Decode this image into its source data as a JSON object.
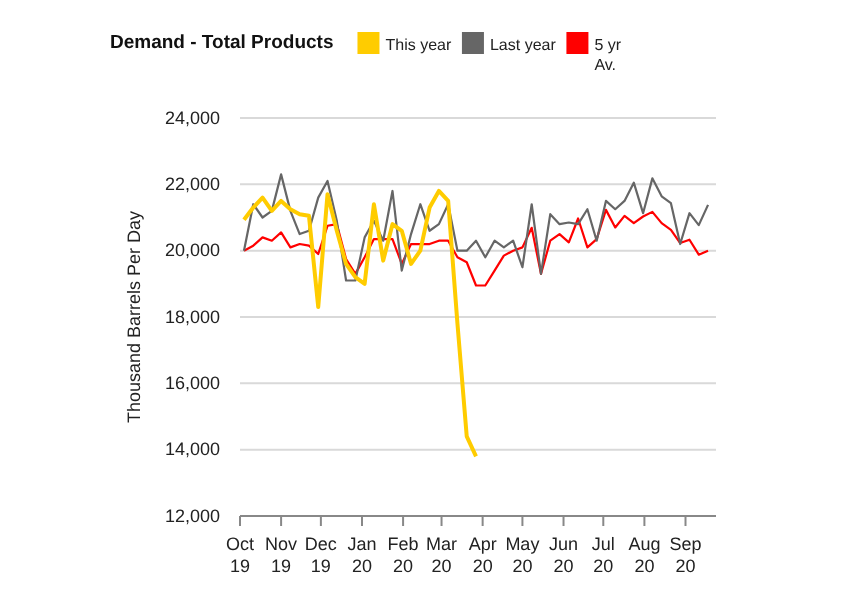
{
  "chart_data": {
    "type": "line",
    "title": "Demand - Total Products",
    "ylabel": "Thousand Barrels Per Day",
    "legend": "top",
    "grid": "y",
    "x": [
      "2019-10-04",
      "2019-10-11",
      "2019-10-18",
      "2019-10-25",
      "2019-11-01",
      "2019-11-08",
      "2019-11-15",
      "2019-11-22",
      "2019-11-29",
      "2019-12-06",
      "2019-12-13",
      "2019-12-20",
      "2019-12-27",
      "2020-01-03",
      "2020-01-10",
      "2020-01-17",
      "2020-01-24",
      "2020-01-31",
      "2020-02-07",
      "2020-02-14",
      "2020-02-21",
      "2020-02-28",
      "2020-03-06",
      "2020-03-13",
      "2020-03-20",
      "2020-03-27",
      "2020-04-03",
      "2020-04-10",
      "2020-04-17",
      "2020-04-24",
      "2020-05-01",
      "2020-05-08",
      "2020-05-15",
      "2020-05-22",
      "2020-05-29",
      "2020-06-05",
      "2020-06-12",
      "2020-06-19",
      "2020-06-26",
      "2020-07-03",
      "2020-07-10",
      "2020-07-17",
      "2020-07-24",
      "2020-07-31",
      "2020-08-07",
      "2020-08-14",
      "2020-08-21",
      "2020-08-28",
      "2020-09-04",
      "2020-09-11",
      "2020-09-18"
    ],
    "series": [
      {
        "name": "This year",
        "color": "#ffcc00",
        "values": [
          20930,
          21300,
          21600,
          21200,
          21500,
          21250,
          21100,
          21050,
          18300,
          21700,
          20600,
          19600,
          19200,
          19000,
          21400,
          19700,
          20800,
          20600,
          19600,
          20000,
          21300,
          21800,
          21500,
          17800,
          14400,
          13800,
          null,
          null,
          null,
          null,
          null,
          null,
          null,
          null,
          null,
          null,
          null,
          null,
          null,
          null,
          null,
          null,
          null,
          null,
          null,
          null,
          null,
          null,
          null,
          null,
          null
        ]
      },
      {
        "name": "Last year",
        "color": "#666666",
        "values": [
          20000,
          21400,
          21000,
          21200,
          22300,
          21200,
          20500,
          20600,
          21600,
          22100,
          20900,
          19100,
          19100,
          20400,
          20900,
          20300,
          21800,
          19400,
          20500,
          21400,
          20600,
          20800,
          21400,
          20000,
          20000,
          20300,
          19800,
          20300,
          20100,
          20300,
          19500,
          21400,
          19300,
          21100,
          20800,
          20850,
          20800,
          21250,
          20300,
          21500,
          21250,
          21500,
          22050,
          21130,
          22180,
          21640,
          21430,
          20200,
          21130,
          20770,
          21380
        ]
      },
      {
        "name": "5 yr Av.",
        "color": "#ff0000",
        "values": [
          20000,
          20150,
          20400,
          20300,
          20550,
          20100,
          20200,
          20150,
          19900,
          20750,
          20800,
          19750,
          19300,
          19800,
          20350,
          20350,
          20350,
          19600,
          20200,
          20200,
          20200,
          20300,
          20300,
          19800,
          19650,
          18950,
          18950,
          19400,
          19850,
          20000,
          20100,
          20690,
          19300,
          20300,
          20500,
          20250,
          20970,
          20100,
          20350,
          21230,
          20700,
          21050,
          20830,
          21030,
          21170,
          20830,
          20630,
          20230,
          20330,
          19880,
          20000
        ]
      }
    ],
    "xlim": [
      "2019-10-01",
      "2020-09-24"
    ],
    "xticks": [
      {
        "value": "2019-10-01",
        "label": "Oct 19"
      },
      {
        "value": "2019-11-01",
        "label": "Nov 19"
      },
      {
        "value": "2019-12-01",
        "label": "Dec 19"
      },
      {
        "value": "2020-01-01",
        "label": "Jan 20"
      },
      {
        "value": "2020-02-01",
        "label": "Feb 20"
      },
      {
        "value": "2020-03-01",
        "label": "Mar 20"
      },
      {
        "value": "2020-04-01",
        "label": "Apr 20"
      },
      {
        "value": "2020-05-01",
        "label": "May 20"
      },
      {
        "value": "2020-06-01",
        "label": "Jun 20"
      },
      {
        "value": "2020-07-01",
        "label": "Jul 20"
      },
      {
        "value": "2020-08-01",
        "label": "Aug 20"
      },
      {
        "value": "2020-09-01",
        "label": "Sep 20"
      }
    ],
    "ylim": [
      12000,
      24000
    ],
    "yticks": [
      {
        "value": 12000,
        "label": "12,000"
      },
      {
        "value": 14000,
        "label": "14,000"
      },
      {
        "value": 16000,
        "label": "16,000"
      },
      {
        "value": 18000,
        "label": "18,000"
      },
      {
        "value": 20000,
        "label": "20,000"
      },
      {
        "value": 22000,
        "label": "22,000"
      },
      {
        "value": 24000,
        "label": "24,000"
      }
    ]
  }
}
